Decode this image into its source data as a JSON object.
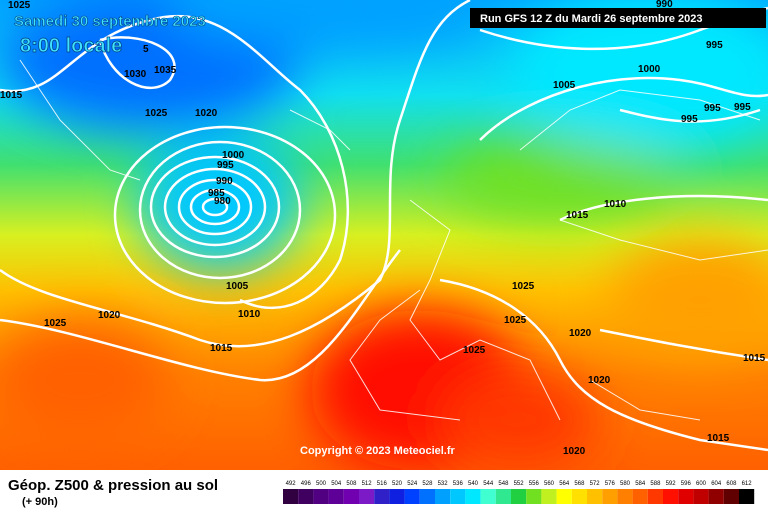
{
  "header": {
    "date": "Samedi 30 septembre 2023",
    "time": "8:00 locale",
    "run": "Run GFS 12 Z du Mardi 26 septembre 2023"
  },
  "map": {
    "isobar_labels": [
      "1025",
      "1015",
      "5",
      "1030",
      "1035",
      "1025",
      "1020",
      "1000",
      "995",
      "990",
      "985",
      "980",
      "1005",
      "1010",
      "1015",
      "1020",
      "1025",
      "990",
      "995",
      "1000",
      "1005",
      "995",
      "995",
      "995",
      "1015",
      "1010",
      "1025",
      "1025",
      "1025",
      "1020",
      "1020",
      "1015",
      "1015",
      "1020"
    ],
    "copyright": "Copyright © 2023 Meteociel.fr"
  },
  "footer": {
    "title": "Géop. Z500 & pression au sol",
    "lead": "(+ 90h)"
  },
  "legend": {
    "items": [
      {
        "value": 492,
        "color": "#300040"
      },
      {
        "value": 496,
        "color": "#400060"
      },
      {
        "value": 500,
        "color": "#500080"
      },
      {
        "value": 504,
        "color": "#5e0098"
      },
      {
        "value": 508,
        "color": "#7000b0"
      },
      {
        "value": 512,
        "color": "#7c1ac8"
      },
      {
        "value": 516,
        "color": "#3020c8"
      },
      {
        "value": 520,
        "color": "#1020e0"
      },
      {
        "value": 524,
        "color": "#0040ff"
      },
      {
        "value": 528,
        "color": "#0070ff"
      },
      {
        "value": 532,
        "color": "#00a0ff"
      },
      {
        "value": 536,
        "color": "#00c8ff"
      },
      {
        "value": 540,
        "color": "#00e8ff"
      },
      {
        "value": 544,
        "color": "#40ffd0"
      },
      {
        "value": 548,
        "color": "#30e890"
      },
      {
        "value": 552,
        "color": "#20d040"
      },
      {
        "value": 556,
        "color": "#70e020"
      },
      {
        "value": 560,
        "color": "#c0f020"
      },
      {
        "value": 564,
        "color": "#ffff00"
      },
      {
        "value": 568,
        "color": "#ffe000"
      },
      {
        "value": 572,
        "color": "#ffc000"
      },
      {
        "value": 576,
        "color": "#ffa000"
      },
      {
        "value": 580,
        "color": "#ff8000"
      },
      {
        "value": 584,
        "color": "#ff6000"
      },
      {
        "value": 588,
        "color": "#ff3800"
      },
      {
        "value": 592,
        "color": "#ff1000"
      },
      {
        "value": 596,
        "color": "#e00000"
      },
      {
        "value": 600,
        "color": "#c00000"
      },
      {
        "value": 604,
        "color": "#900000"
      },
      {
        "value": 608,
        "color": "#600000"
      },
      {
        "value": 612,
        "color": "#000000"
      }
    ]
  }
}
